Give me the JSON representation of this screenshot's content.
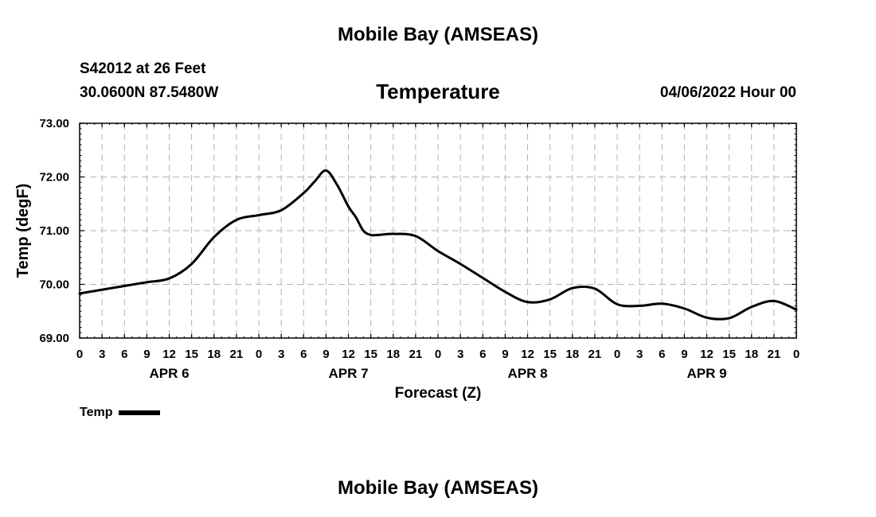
{
  "header": {
    "title": "Mobile Bay (AMSEAS)",
    "station": "S42012 at 26 Feet",
    "coords": "30.0600N  87.5480W",
    "timestamp": "04/06/2022 Hour 00"
  },
  "footer": {
    "title": "Mobile Bay (AMSEAS)"
  },
  "legend": {
    "label": "Temp"
  },
  "colors": {
    "line": "#000000",
    "grid": "#b4b4b4"
  },
  "chart_data": {
    "type": "line",
    "title": "Temperature",
    "xlabel": "Forecast (Z)",
    "ylabel": "Temp (degF)",
    "xlim": [
      0,
      96
    ],
    "ylim": [
      69.0,
      73.0
    ],
    "grid": true,
    "x_ticks": [
      0,
      3,
      6,
      9,
      12,
      15,
      18,
      21,
      24,
      27,
      30,
      33,
      36,
      39,
      42,
      45,
      48,
      51,
      54,
      57,
      60,
      63,
      66,
      69,
      72,
      75,
      78,
      81,
      84,
      87,
      90,
      93,
      96
    ],
    "x_tick_labels": [
      "0",
      "3",
      "6",
      "9",
      "12",
      "15",
      "18",
      "21",
      "0",
      "3",
      "6",
      "9",
      "12",
      "15",
      "18",
      "21",
      "0",
      "3",
      "6",
      "9",
      "12",
      "15",
      "18",
      "21",
      "0",
      "3",
      "6",
      "9",
      "12",
      "15",
      "18",
      "21",
      "0"
    ],
    "y_ticks": [
      69.0,
      70.0,
      71.0,
      72.0,
      73.0
    ],
    "y_tick_labels": [
      "69.00",
      "70.00",
      "71.00",
      "72.00",
      "73.00"
    ],
    "day_labels": [
      {
        "label": "APR 6",
        "x": 12
      },
      {
        "label": "APR 7",
        "x": 36
      },
      {
        "label": "APR 8",
        "x": 60
      },
      {
        "label": "APR 9",
        "x": 84
      }
    ],
    "series": [
      {
        "name": "Temp",
        "x": [
          0,
          3,
          6,
          9,
          12,
          15,
          18,
          21,
          24,
          27,
          30,
          31.5,
          33,
          34.5,
          36,
          37,
          38,
          39,
          40,
          42,
          45,
          48,
          51,
          54,
          57,
          60,
          63,
          66,
          69,
          72,
          75,
          78,
          81,
          84,
          87,
          90,
          93,
          96
        ],
        "values": [
          69.83,
          69.9,
          69.97,
          70.04,
          70.11,
          70.38,
          70.88,
          71.2,
          71.29,
          71.38,
          71.7,
          71.92,
          72.12,
          71.85,
          71.45,
          71.25,
          71.0,
          70.92,
          70.92,
          70.94,
          70.9,
          70.62,
          70.38,
          70.12,
          69.86,
          69.67,
          69.72,
          69.93,
          69.92,
          69.63,
          69.6,
          69.64,
          69.55,
          69.38,
          69.37,
          69.58,
          69.69,
          69.53
        ]
      }
    ]
  }
}
